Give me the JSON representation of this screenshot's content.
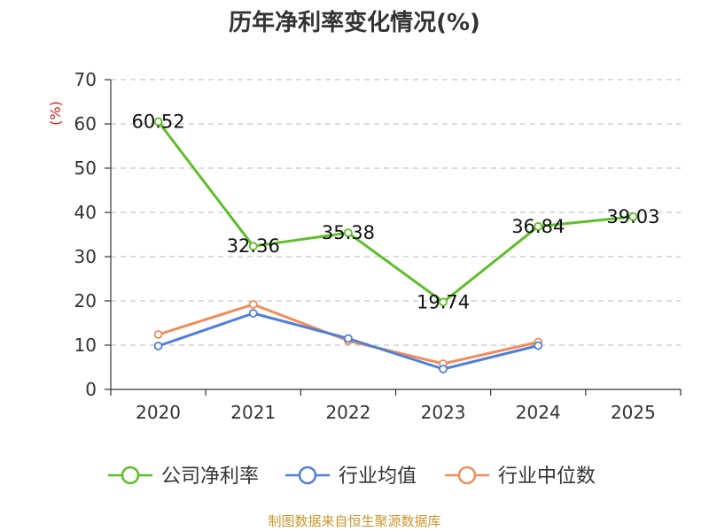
{
  "chart_data": {
    "type": "line",
    "title": "历年净利率变化情况(%)",
    "ylabel": "(%)",
    "xlabel": "",
    "categories": [
      "2020",
      "2021",
      "2022",
      "2023",
      "2024",
      "2025"
    ],
    "ylim": [
      0,
      70
    ],
    "yticks": [
      0,
      10,
      20,
      30,
      40,
      50,
      60,
      70
    ],
    "grid": true,
    "legend_position": "bottom",
    "series": [
      {
        "name": "公司净利率",
        "color": "#5cbf26",
        "values": [
          60.52,
          32.36,
          35.38,
          19.74,
          36.84,
          39.03
        ],
        "labels": [
          "60.52",
          "32.36",
          "35.38",
          "19.74",
          "36.84",
          "39.03"
        ],
        "show_labels": true
      },
      {
        "name": "行业均值",
        "color": "#4f7fd9",
        "values": [
          9.8,
          17.2,
          11.5,
          4.6,
          9.9,
          null
        ],
        "show_labels": false
      },
      {
        "name": "行业中位数",
        "color": "#f28c5a",
        "values": [
          12.4,
          19.2,
          11.0,
          5.8,
          10.7,
          null
        ],
        "show_labels": false
      }
    ],
    "source": "制图数据来自恒生聚源数据库"
  }
}
